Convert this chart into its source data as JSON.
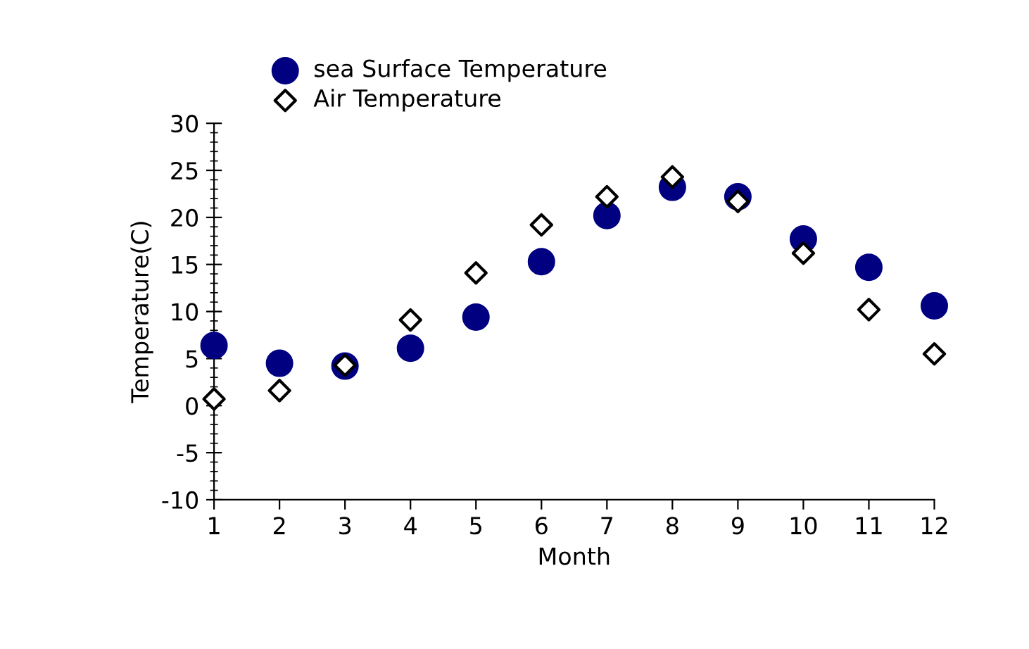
{
  "chart_data": {
    "type": "scatter",
    "xlabel": "Month",
    "ylabel": "Temperature(C)",
    "x": [
      1,
      2,
      3,
      4,
      5,
      6,
      7,
      8,
      9,
      10,
      11,
      12
    ],
    "series": [
      {
        "name": "sea Surface Temperature",
        "color": "#000080",
        "marker": "circle",
        "values": [
          6.4,
          4.5,
          4.2,
          6.1,
          9.4,
          15.3,
          20.2,
          23.2,
          22.2,
          17.7,
          14.7,
          10.6
        ]
      },
      {
        "name": "Air Temperature",
        "color": "#000000",
        "marker": "diamond",
        "values": [
          0.7,
          1.6,
          4.3,
          9.1,
          14.1,
          19.2,
          22.2,
          24.3,
          21.7,
          16.2,
          10.2,
          5.5
        ]
      }
    ],
    "xlim": [
      1,
      12
    ],
    "xticks": [
      1,
      2,
      3,
      4,
      5,
      6,
      7,
      8,
      9,
      10,
      11,
      12
    ],
    "ylim": [
      -10,
      30
    ],
    "yticks": [
      -10,
      -5,
      0,
      5,
      10,
      15,
      20,
      25,
      30
    ],
    "grid": false,
    "legend": "top"
  }
}
